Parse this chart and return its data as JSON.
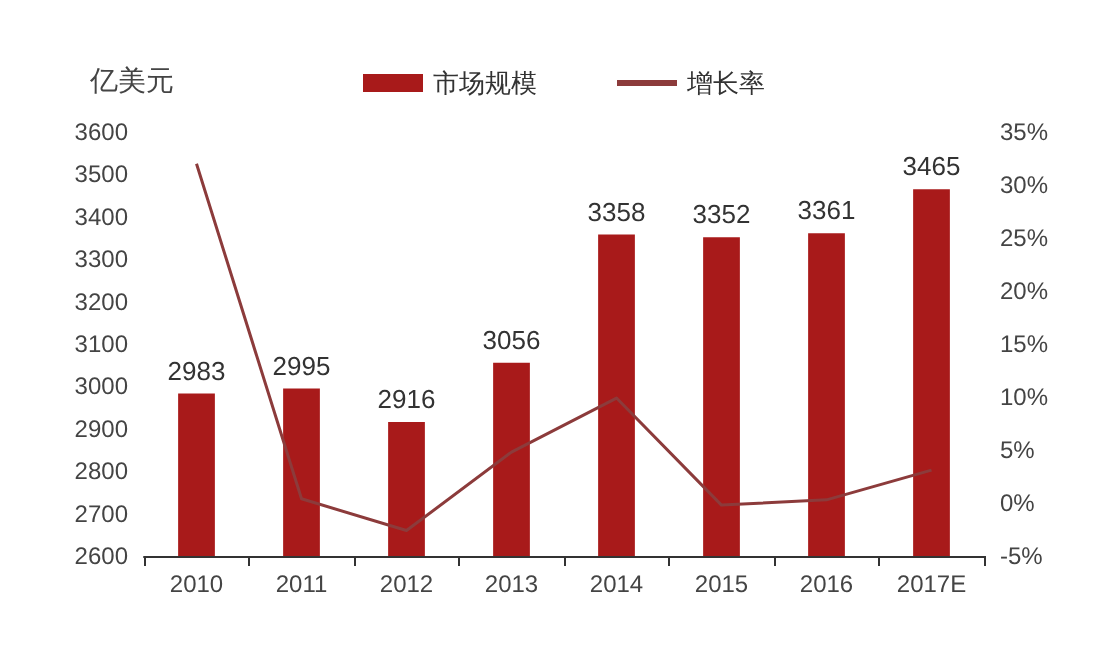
{
  "chart_data": {
    "type": "bar",
    "ylabel": "亿美元",
    "categories": [
      "2010",
      "2011",
      "2012",
      "2013",
      "2014",
      "2015",
      "2016",
      "2017E"
    ],
    "series": [
      {
        "name": "市场规模",
        "color": "#a81a1a",
        "values": [
          2983,
          2995,
          2916,
          3056,
          3358,
          3352,
          3361,
          3465
        ]
      },
      {
        "name": "增长率",
        "type": "line",
        "axis": "y2",
        "color": "#8c3b3b",
        "values": [
          32,
          0.4,
          -2.6,
          4.8,
          9.9,
          -0.2,
          0.3,
          3.1
        ]
      }
    ],
    "ylim": [
      2600,
      3600
    ],
    "yticks": [
      2600,
      2700,
      2800,
      2900,
      3000,
      3100,
      3200,
      3300,
      3400,
      3500,
      3600
    ],
    "y2lim": [
      -5,
      35
    ],
    "y2ticks": [
      {
        "value": -5,
        "label": "-5%"
      },
      {
        "value": 0,
        "label": "0%"
      },
      {
        "value": 5,
        "label": "5%"
      },
      {
        "value": 10,
        "label": "10%"
      },
      {
        "value": 15,
        "label": "15%"
      },
      {
        "value": 20,
        "label": "20%"
      },
      {
        "value": 25,
        "label": "25%"
      },
      {
        "value": 30,
        "label": "30%"
      },
      {
        "value": 35,
        "label": "35%"
      }
    ],
    "value_labels": [
      "2983",
      "2995",
      "2916",
      "3056",
      "3358",
      "3352",
      "3361",
      "3465"
    ],
    "grid": false,
    "legend": "top",
    "marker": "none"
  }
}
